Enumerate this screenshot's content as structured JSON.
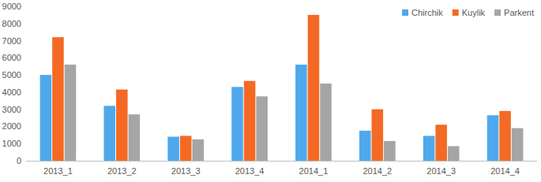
{
  "chart_data": {
    "type": "bar",
    "categories": [
      "2013_1",
      "2013_2",
      "2013_3",
      "2013_4",
      "2014_1",
      "2014_2",
      "2014_3",
      "2014_4"
    ],
    "series": [
      {
        "name": "Chirchik",
        "color": "#4DA9EC",
        "values": [
          5000,
          3200,
          1400,
          4300,
          5600,
          1750,
          1450,
          2650
        ]
      },
      {
        "name": "Kuylik",
        "color": "#F46A24",
        "values": [
          7200,
          4150,
          1450,
          4650,
          8500,
          3000,
          2100,
          2900
        ]
      },
      {
        "name": "Parkent",
        "color": "#A5A5A5",
        "values": [
          5600,
          2700,
          1250,
          3750,
          4500,
          1150,
          850,
          1900
        ]
      }
    ],
    "ylim": [
      0,
      9000
    ],
    "yticks": [
      0,
      1000,
      2000,
      3000,
      4000,
      5000,
      6000,
      7000,
      8000,
      9000
    ],
    "grid": false,
    "legend": "top-right"
  }
}
